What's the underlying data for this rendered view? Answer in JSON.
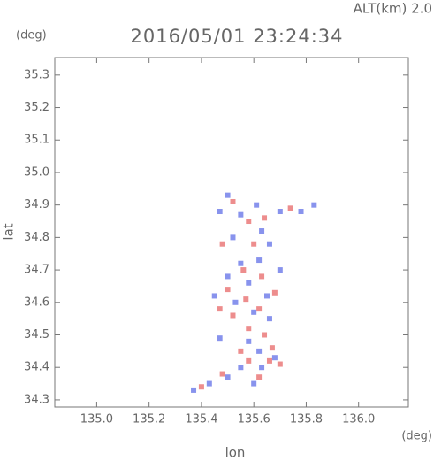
{
  "chart_data": {
    "type": "scatter",
    "title": "2016/05/01 23:24:34",
    "annotation": "ALT(km) 2.0",
    "y_unit": "(deg)",
    "x_unit": "(deg)",
    "xlabel": "lon",
    "ylabel": "lat",
    "xlim": [
      134.84,
      136.19
    ],
    "ylim": [
      34.278,
      35.354
    ],
    "xticks": [
      {
        "value": 135,
        "label": "135.0"
      },
      135.2,
      135.4,
      135.6,
      135.8,
      {
        "value": 136,
        "label": "136.0"
      }
    ],
    "yticks": [
      34.3,
      34.4,
      34.5,
      34.6,
      34.7,
      34.8,
      34.9,
      {
        "value": 35,
        "label": "35.0"
      },
      35.1,
      35.2,
      35.3
    ],
    "series": [
      {
        "color": "#6a78e8",
        "x": [
          135.5,
          135.47,
          135.55,
          135.61,
          135.7,
          135.78,
          135.83,
          135.52,
          135.63,
          135.66,
          135.55,
          135.62,
          135.5,
          135.58,
          135.65,
          135.53,
          135.6,
          135.66,
          135.47,
          135.58,
          135.62,
          135.55,
          135.63,
          135.68,
          135.5,
          135.43,
          135.37,
          135.6,
          135.45,
          135.7
        ],
        "y": [
          34.93,
          34.88,
          34.87,
          34.9,
          34.88,
          34.88,
          34.9,
          34.8,
          34.82,
          34.78,
          34.72,
          34.73,
          34.68,
          34.66,
          34.62,
          34.6,
          34.57,
          34.55,
          34.49,
          34.48,
          34.45,
          34.4,
          34.4,
          34.43,
          34.37,
          34.35,
          34.33,
          34.35,
          34.62,
          34.7
        ]
      },
      {
        "color": "#e87070",
        "x": [
          135.52,
          135.58,
          135.64,
          135.74,
          135.48,
          135.6,
          135.56,
          135.63,
          135.5,
          135.57,
          135.62,
          135.52,
          135.58,
          135.64,
          135.55,
          135.66,
          135.7,
          135.58,
          135.48,
          135.4,
          135.62,
          135.67,
          135.47,
          135.68
        ],
        "y": [
          34.91,
          34.85,
          34.86,
          34.89,
          34.78,
          34.78,
          34.7,
          34.68,
          34.64,
          34.61,
          34.58,
          34.56,
          34.52,
          34.5,
          34.45,
          34.42,
          34.41,
          34.42,
          34.38,
          34.34,
          34.37,
          34.46,
          34.58,
          34.63
        ]
      }
    ]
  }
}
